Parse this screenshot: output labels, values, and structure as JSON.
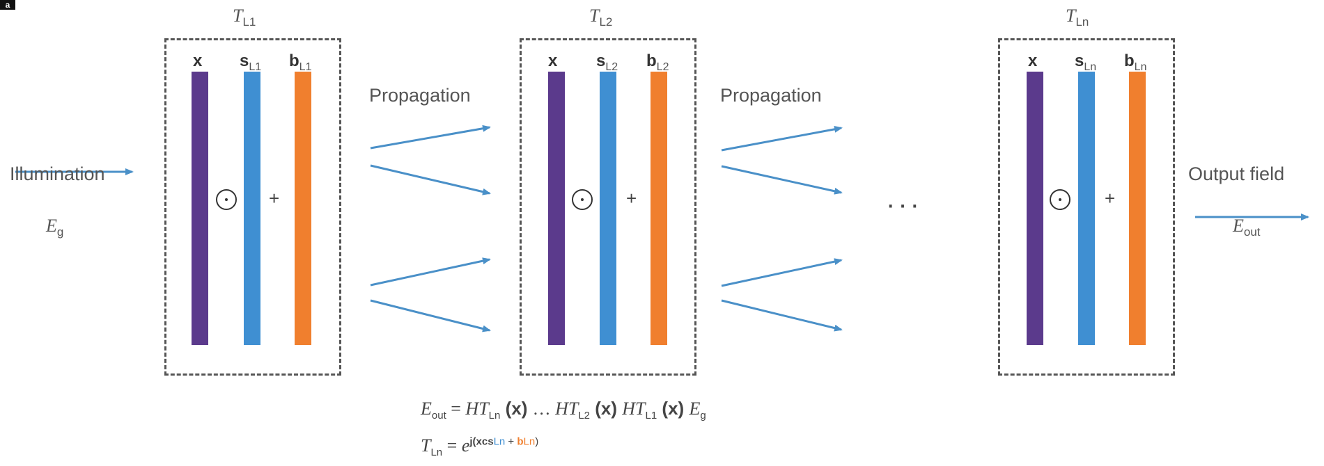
{
  "panel_letter": "a",
  "illumination": {
    "label": "Illumination",
    "field": "E",
    "field_sub": "g"
  },
  "output": {
    "label": "Output field",
    "field": "E",
    "field_sub": "out"
  },
  "propagation_label": "Propagation",
  "ellipsis": "···",
  "operators": {
    "multiply": "⊙",
    "add": "+"
  },
  "layers": [
    {
      "title": "T",
      "title_sub": "L1",
      "x_label": "x",
      "s_label": "s",
      "s_sub": "L1",
      "b_label": "b",
      "b_sub": "L1"
    },
    {
      "title": "T",
      "title_sub": "L2",
      "x_label": "x",
      "s_label": "s",
      "s_sub": "L2",
      "b_label": "b",
      "b_sub": "L2"
    },
    {
      "title": "T",
      "title_sub": "Ln",
      "x_label": "x",
      "s_label": "s",
      "s_sub": "Ln",
      "b_label": "b",
      "b_sub": "Ln"
    }
  ],
  "equation1": {
    "lhs": "E",
    "lhs_sub": "out",
    "eq": " = ",
    "t1": "HT",
    "t1_sub": "Ln",
    "x1": " (x) ",
    "mid": "… ",
    "t2": "HT",
    "t2_sub": "L2",
    "x2": " (x) ",
    "t3": "HT",
    "t3_sub": "L1",
    "x3": " (x) ",
    "tail": "E",
    "tail_sub": "g"
  },
  "equation2": {
    "lhs": "T",
    "lhs_sub": "Ln",
    "eq": " = ",
    "base": "e",
    "exp_open": "j(xcs",
    "exp_s_sub": "Ln",
    "exp_plus": " + ",
    "exp_b": "b",
    "exp_b_sub": "Ln",
    "exp_close": ")"
  },
  "colors": {
    "x_bar": "#5b3a8c",
    "s_bar": "#3f8fd2",
    "b_bar": "#f07f2e",
    "arrow": "#4a90c8",
    "dash": "#555555"
  }
}
